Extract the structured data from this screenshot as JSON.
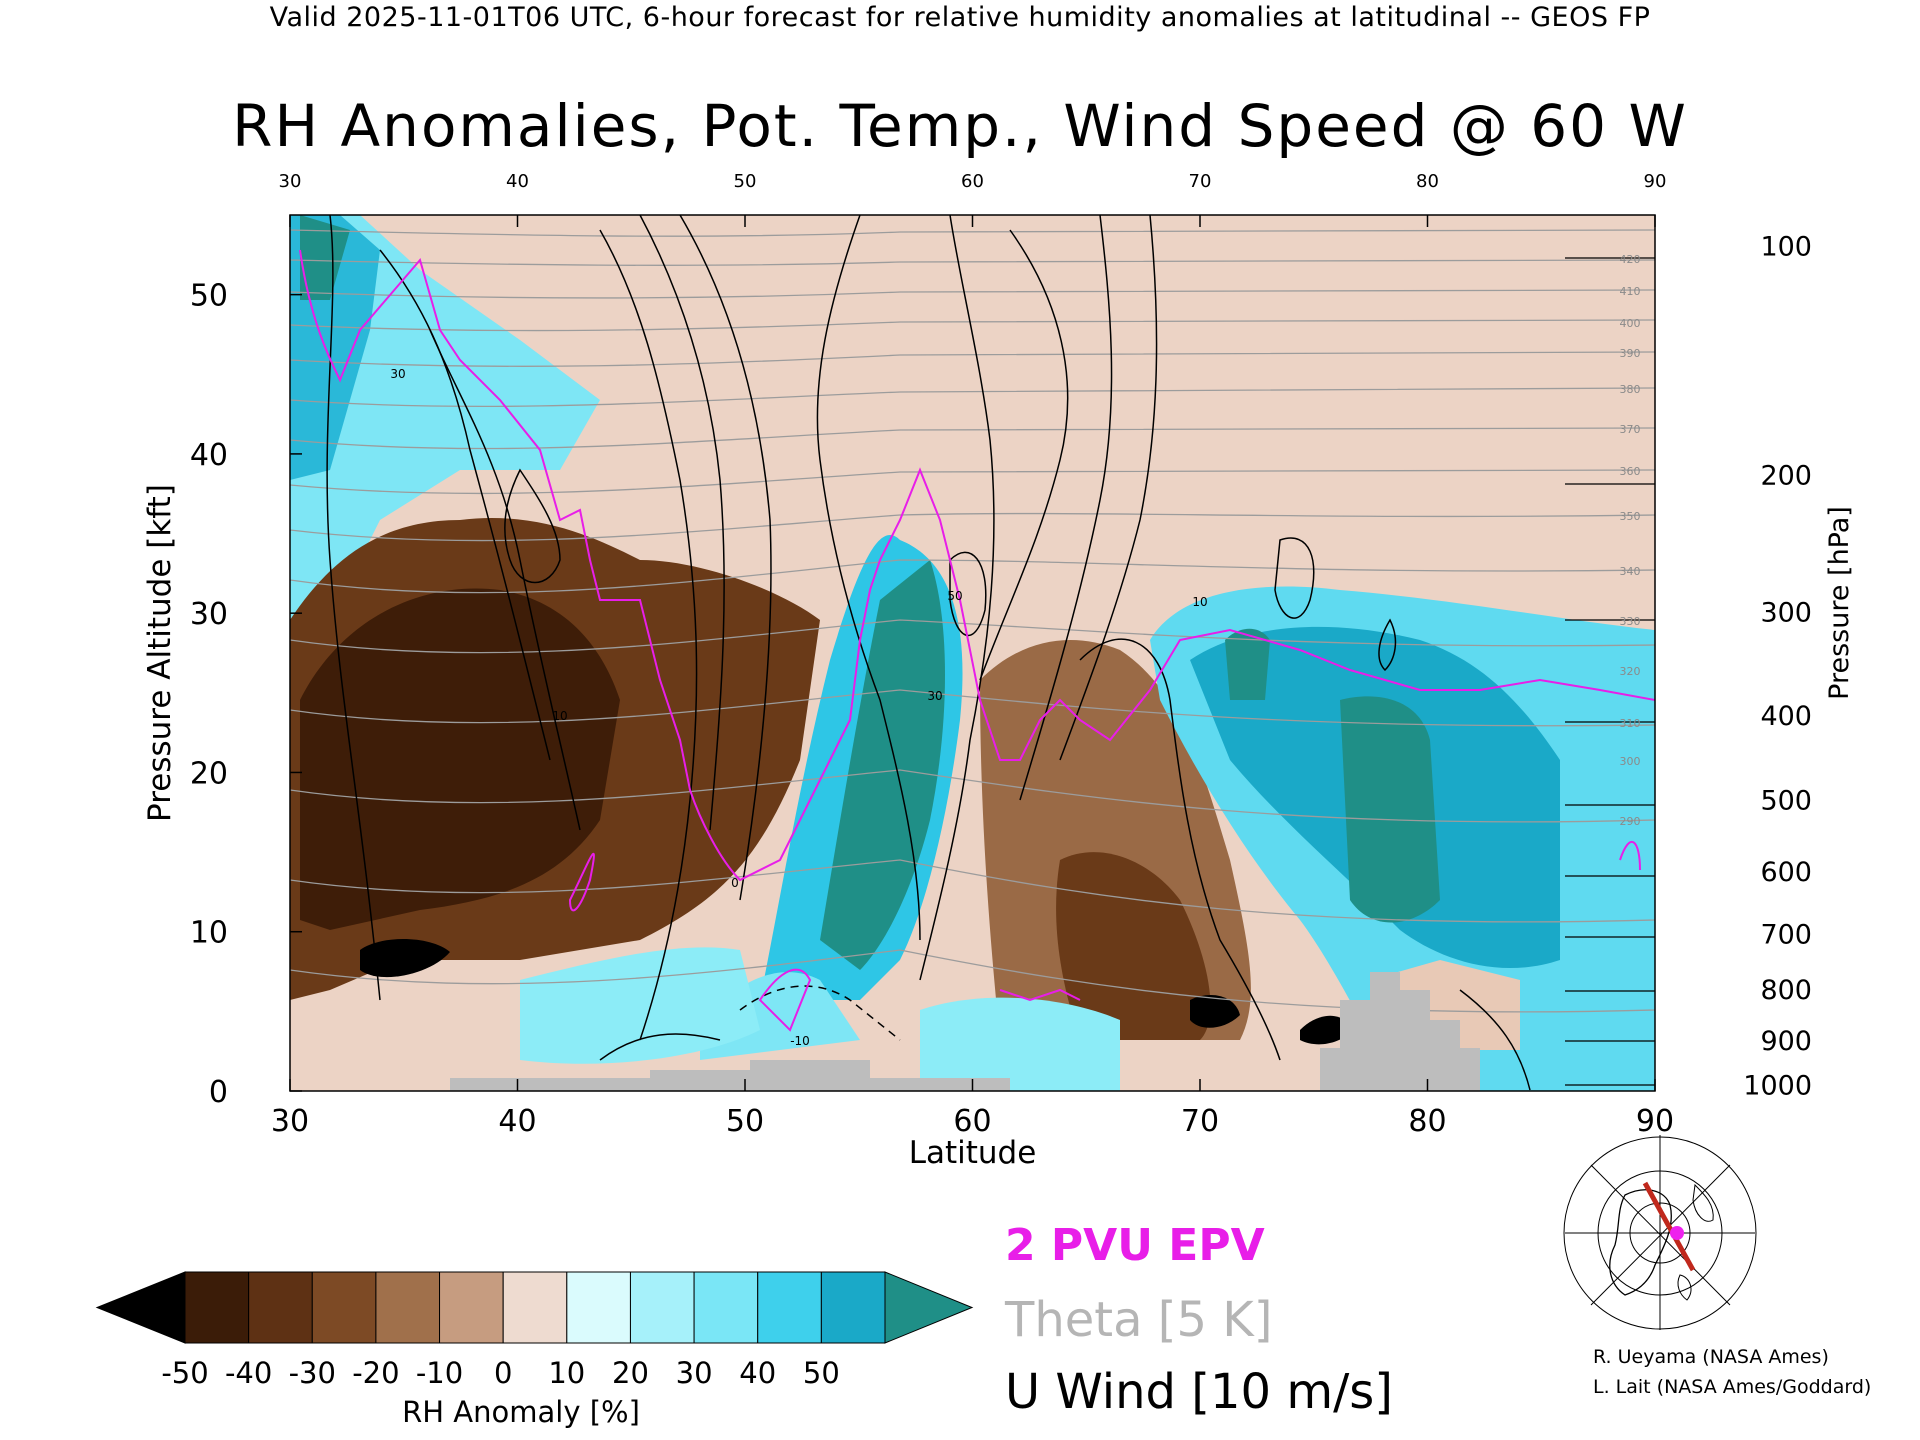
{
  "header": {
    "subtitle": "Valid 2025-11-01T06 UTC, 6-hour forecast for relative humidity anomalies at latitudinal -- GEOS FP",
    "title": "RH Anomalies, Pot. Temp., Wind Speed @ 60 W"
  },
  "chart_data": {
    "type": "heatmap",
    "title": "RH Anomalies, Pot. Temp., Wind Speed @ 60 W",
    "xlabel": "Latitude",
    "ylabel": "Pressure Altitude [kft]",
    "y2label": "Pressure [hPa]",
    "xlim": [
      30,
      90
    ],
    "ylim": [
      0,
      55
    ],
    "x_ticks": [
      "30",
      "40",
      "50",
      "60",
      "70",
      "80",
      "90"
    ],
    "y_ticks": [
      "0",
      "10",
      "20",
      "30",
      "40",
      "50"
    ],
    "pressure_ticks": [
      {
        "label": "100",
        "kft": 53.1
      },
      {
        "label": "200",
        "kft": 38.7
      },
      {
        "label": "300",
        "kft": 30.1
      },
      {
        "label": "400",
        "kft": 23.6
      },
      {
        "label": "500",
        "kft": 18.3
      },
      {
        "label": "600",
        "kft": 13.8
      },
      {
        "label": "700",
        "kft": 9.9
      },
      {
        "label": "800",
        "kft": 6.4
      },
      {
        "label": "900",
        "kft": 3.2
      },
      {
        "label": "1000",
        "kft": 0.4
      }
    ],
    "theta_labels_top": [
      "420",
      "410",
      "400",
      "390",
      "380",
      "370",
      "360",
      "350",
      "340",
      "330",
      "320",
      "310",
      "300",
      "290"
    ],
    "wind_contour_labels": [
      "30",
      "10",
      "50",
      "30",
      "10",
      "0",
      "-10"
    ],
    "colorbar": {
      "label": "RH Anomaly [%]",
      "ticks": [
        "-50",
        "-40",
        "-30",
        "-20",
        "-10",
        "0",
        "10",
        "20",
        "30",
        "40",
        "50"
      ],
      "colors": [
        "#000000",
        "#3b1c08",
        "#5e3114",
        "#7d4a25",
        "#a0704b",
        "#c69c80",
        "#eedbd0",
        "#dafbfd",
        "#a6f1fa",
        "#7ae6f6",
        "#3ed0ec",
        "#1aa9c8",
        "#1f8f87"
      ]
    },
    "overlay_legend": {
      "epv": "2 PVU EPV",
      "theta": "Theta [5 K]",
      "wind": "U Wind [10 m/s]"
    }
  },
  "credits": {
    "line1": "R. Ueyama (NASA Ames)",
    "line2": "L. Lait (NASA Ames/Goddard)"
  },
  "map_inset": {
    "marker": "point",
    "colors": {
      "section": "#c0281c",
      "point": "#ee22ee"
    }
  }
}
